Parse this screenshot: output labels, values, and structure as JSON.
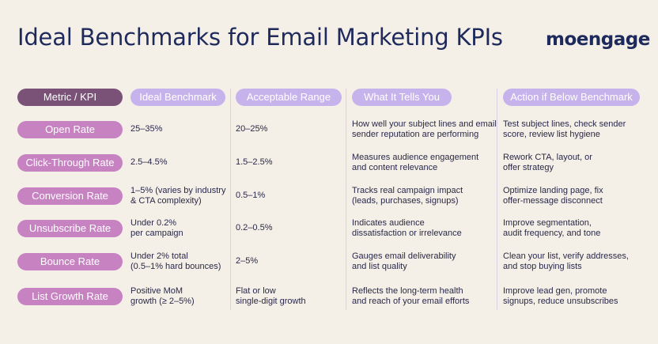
{
  "title": "Ideal Benchmarks for Email Marketing KPIs",
  "logo_text": "moengage",
  "headers": [
    "Metric / KPI",
    "Ideal Benchmark",
    "Acceptable Range",
    "What It Tells You",
    "Action if Below Benchmark"
  ],
  "rows": [
    {
      "metric": "Open Rate",
      "ideal": "25–35%",
      "acceptable": "20–25%",
      "tells": "How well your subject lines and email\nsender reputation are performing",
      "action": "Test subject lines, check sender\nscore, review list hygiene"
    },
    {
      "metric": "Click-Through Rate",
      "ideal": "2.5–4.5%",
      "acceptable": "1.5–2.5%",
      "tells": "Measures audience engagement\nand content relevance",
      "action": "Rework CTA, layout, or\noffer strategy"
    },
    {
      "metric": "Conversion Rate",
      "ideal": "1–5% (varies by industry\n& CTA complexity)",
      "acceptable": "0.5–1%",
      "tells": "Tracks real campaign impact\n(leads, purchases, signups)",
      "action": "Optimize landing page, fix\noffer-message disconnect"
    },
    {
      "metric": "Unsubscribe Rate",
      "ideal": "Under 0.2%\nper campaign",
      "acceptable": "0.2–0.5%",
      "tells": "Indicates audience\ndissatisfaction or irrelevance",
      "action": "Improve segmentation,\naudit frequency, and tone"
    },
    {
      "metric": "Bounce Rate",
      "ideal": "Under 2% total\n(0.5–1% hard bounces)",
      "acceptable": "2–5%",
      "tells": "Gauges email deliverability\nand list quality",
      "action": "Clean your list, verify addresses,\nand stop buying lists"
    },
    {
      "metric": "List Growth Rate",
      "ideal": "Positive MoM\ngrowth (≥ 2–5%)",
      "acceptable": "Flat or low\nsingle-digit growth",
      "tells": "Reflects the long-term health\nand reach of your email efforts",
      "action": "Improve lead gen, promote\nsignups, reduce unsubscribes"
    }
  ]
}
